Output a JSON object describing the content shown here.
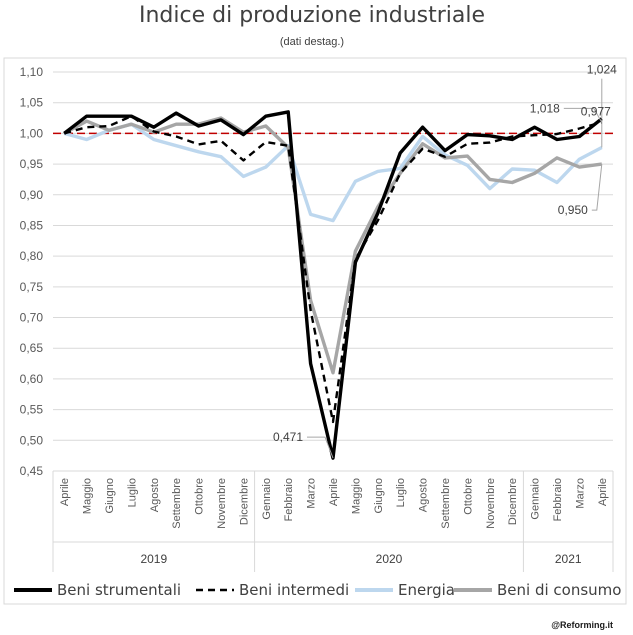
{
  "chart_data": {
    "type": "line",
    "title": "Indice di produzione industriale",
    "subtitle": "(dati destag.)",
    "categories": [
      "Aprile",
      "Maggio",
      "Giugno",
      "Luglio",
      "Agosto",
      "Settembre",
      "Ottobre",
      "Novembre",
      "Dicembre",
      "Gennaio",
      "Febbraio",
      "Marzo",
      "Aprile",
      "Maggio",
      "Giugno",
      "Luglio",
      "Agosto",
      "Settembre",
      "Ottobre",
      "Novembre",
      "Dicembre",
      "Gennaio",
      "Febbraio",
      "Marzo",
      "Aprile"
    ],
    "years": [
      {
        "label": "2019",
        "from": 0,
        "to": 8
      },
      {
        "label": "2020",
        "from": 9,
        "to": 20
      },
      {
        "label": "2021",
        "from": 21,
        "to": 24
      }
    ],
    "ylim": [
      0.45,
      1.1
    ],
    "ytick_labels": [
      "0,45",
      "0,50",
      "0,55",
      "0,60",
      "0,65",
      "0,70",
      "0,75",
      "0,80",
      "0,85",
      "0,90",
      "0,95",
      "1,00",
      "1,05",
      "1,10"
    ],
    "grid": true,
    "reference_line": {
      "value": 1.0,
      "color": "#c00000"
    },
    "series": [
      {
        "name": "Beni strumentali",
        "color": "#000000",
        "dash": "solid",
        "values": [
          1.0,
          1.028,
          1.028,
          1.028,
          1.01,
          1.033,
          1.012,
          1.022,
          0.998,
          1.028,
          1.035,
          0.625,
          0.471,
          0.79,
          0.87,
          0.968,
          1.01,
          0.972,
          0.998,
          0.996,
          0.99,
          1.01,
          0.99,
          0.995,
          1.024
        ]
      },
      {
        "name": "Beni intermedi",
        "color": "#000000",
        "dash": "dashed",
        "values": [
          1.0,
          1.01,
          1.012,
          1.028,
          1.003,
          0.995,
          0.982,
          0.988,
          0.956,
          0.986,
          0.98,
          0.712,
          0.53,
          0.795,
          0.858,
          0.935,
          0.975,
          0.962,
          0.983,
          0.985,
          0.995,
          0.997,
          0.999,
          1.008,
          1.018
        ]
      },
      {
        "name": "Energia",
        "color": "#bdd7ee",
        "dash": "solid",
        "values": [
          1.0,
          0.99,
          1.005,
          1.015,
          0.99,
          0.98,
          0.97,
          0.962,
          0.93,
          0.945,
          0.98,
          0.868,
          0.858,
          0.922,
          0.938,
          0.943,
          0.995,
          0.965,
          0.948,
          0.91,
          0.942,
          0.94,
          0.92,
          0.958,
          0.977
        ]
      },
      {
        "name": "Beni di consumo",
        "color": "#a6a6a6",
        "dash": "solid",
        "values": [
          1.0,
          1.02,
          1.005,
          1.015,
          1.002,
          1.015,
          1.015,
          1.025,
          1.002,
          1.012,
          0.977,
          0.728,
          0.61,
          0.808,
          0.88,
          0.935,
          0.983,
          0.96,
          0.963,
          0.925,
          0.92,
          0.935,
          0.96,
          0.945,
          0.95
        ]
      }
    ],
    "annotations": [
      {
        "label": "1,024",
        "series": 0,
        "index": 24
      },
      {
        "label": "1,018",
        "series": 1,
        "index": 24
      },
      {
        "label": "0,977",
        "series": 2,
        "index": 24
      },
      {
        "label": "0,950",
        "series": 3,
        "index": 24
      },
      {
        "label": "0,471",
        "series": 0,
        "index": 12
      }
    ]
  },
  "credit": "@Reforming.it"
}
